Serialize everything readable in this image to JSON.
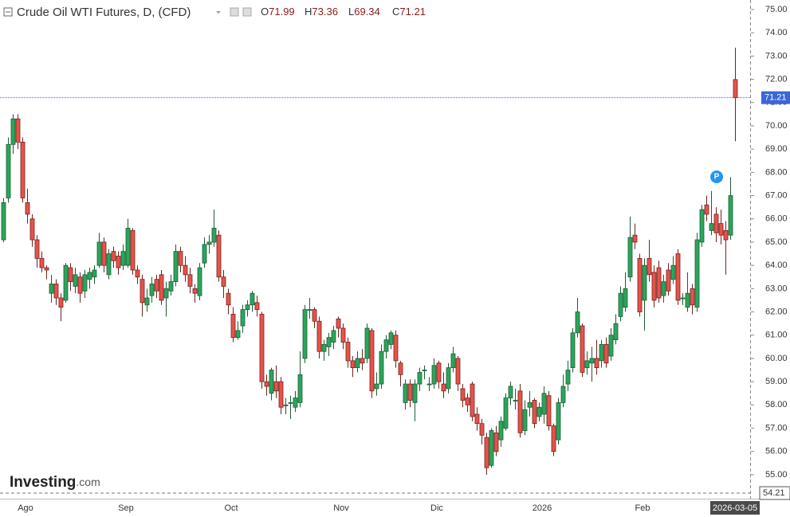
{
  "chart_data": {
    "type": "candlestick",
    "title": "Crude Oil WTI Futures, D, (CFD)",
    "ohlc_labels": [
      "O",
      "H",
      "L",
      "C"
    ],
    "annotation": "P",
    "watermark": [
      "Investing",
      ".com"
    ],
    "crosshair_price": 54.21,
    "up_color": "#2aa65c",
    "down_color": "#e8524a",
    "ylim": [
      53.97,
      75.41
    ],
    "yticks": [
      {
        "value": 55,
        "label": "55.00"
      },
      {
        "value": 56,
        "label": "56.00"
      },
      {
        "value": 57,
        "label": "57.00"
      },
      {
        "value": 58,
        "label": "58.00"
      },
      {
        "value": 59,
        "label": "59.00"
      },
      {
        "value": 60,
        "label": "60.00"
      },
      {
        "value": 61,
        "label": "61.00"
      },
      {
        "value": 62,
        "label": "62.00"
      },
      {
        "value": 63,
        "label": "63.00"
      },
      {
        "value": 64,
        "label": "64.00"
      },
      {
        "value": 65,
        "label": "65.00"
      },
      {
        "value": 66,
        "label": "66.00"
      },
      {
        "value": 67,
        "label": "67.00"
      },
      {
        "value": 68,
        "label": "68.00"
      },
      {
        "value": 69,
        "label": "69.00"
      },
      {
        "value": 70,
        "label": "70.00"
      },
      {
        "value": 71,
        "label": "71.00"
      },
      {
        "value": 72,
        "label": "72.00"
      },
      {
        "value": 73,
        "label": "73.00"
      },
      {
        "value": 74,
        "label": "74.00"
      },
      {
        "value": 75,
        "label": "75.00"
      }
    ],
    "categories": [
      null,
      null,
      null,
      null,
      "Ago",
      null,
      null,
      null,
      null,
      null,
      null,
      null,
      null,
      null,
      null,
      null,
      null,
      null,
      null,
      null,
      null,
      null,
      null,
      null,
      null,
      "Sep",
      null,
      null,
      null,
      null,
      null,
      null,
      null,
      null,
      null,
      null,
      null,
      null,
      null,
      null,
      null,
      null,
      null,
      null,
      null,
      null,
      null,
      "Oct",
      null,
      null,
      null,
      null,
      null,
      null,
      null,
      null,
      null,
      null,
      null,
      null,
      null,
      null,
      null,
      null,
      null,
      null,
      null,
      null,
      null,
      null,
      "Nov",
      null,
      null,
      null,
      null,
      null,
      null,
      null,
      null,
      null,
      null,
      null,
      null,
      null,
      null,
      null,
      null,
      null,
      null,
      null,
      "Dic",
      null,
      null,
      null,
      null,
      null,
      null,
      null,
      null,
      null,
      null,
      null,
      null,
      null,
      null,
      null,
      null,
      null,
      null,
      null,
      null,
      null,
      "2026",
      null,
      null,
      null,
      null,
      null,
      null,
      null,
      null,
      null,
      null,
      null,
      null,
      null,
      null,
      null,
      null,
      null,
      null,
      null,
      null,
      "Feb",
      null,
      null,
      null,
      null,
      null,
      null,
      null,
      null,
      null,
      null,
      null,
      null,
      null,
      null,
      null,
      null,
      null,
      null,
      null,
      "2026-03-05"
    ],
    "open": [
      65.1,
      66.9,
      69.2,
      70.3,
      69.3,
      66.7,
      66.0,
      65.1,
      64.3,
      63.9,
      62.8,
      63.2,
      62.6,
      62.5,
      63.9,
      63.1,
      63.5,
      62.9,
      63.4,
      63.5,
      64.0,
      65.0,
      63.6,
      64.6,
      64.4,
      64.0,
      64.0,
      65.5,
      63.8,
      63.4,
      62.3,
      62.7,
      63.4,
      63.6,
      62.6,
      62.9,
      63.3,
      64.6,
      64.0,
      63.6,
      63.0,
      62.7,
      64.1,
      64.9,
      65.0,
      65.3,
      63.5,
      62.8,
      61.9,
      60.9,
      61.4,
      62.1,
      62.3,
      62.4,
      61.9,
      59.0,
      58.5,
      59.0,
      59.0,
      58.0,
      58.1,
      57.9,
      58.1,
      60.0,
      62.1,
      62.1,
      61.6,
      60.3,
      60.5,
      60.7,
      61.7,
      61.3,
      60.7,
      59.9,
      59.6,
      60.0,
      60.0,
      61.2,
      58.7,
      58.9,
      60.3,
      60.6,
      61.0,
      59.8,
      58.1,
      58.9,
      58.1,
      58.9,
      59.5,
      58.9,
      58.9,
      59.8,
      58.9,
      58.7,
      59.6,
      60.0,
      58.7,
      58.3,
      58.9,
      57.6,
      57.2,
      56.6,
      55.4,
      56.8,
      56.5,
      57.0,
      58.3,
      58.2,
      58.6,
      56.9,
      57.9,
      58.2,
      57.5,
      57.6,
      58.4,
      57.1,
      56.5,
      58.1,
      58.9,
      59.6,
      61.1,
      61.4,
      59.6,
      59.8,
      60.0,
      59.9,
      60.6,
      60.1,
      60.8,
      61.8,
      62.2,
      63.5,
      65.3,
      64.3,
      62.5,
      64.3,
      63.7,
      63.9,
      62.7,
      63.8,
      63.4,
      64.5,
      62.6,
      62.2,
      63.0,
      62.2,
      65.0,
      66.6,
      65.5,
      66.2,
      65.8,
      65.5,
      65.3,
      71.99
    ],
    "high": [
      66.9,
      69.5,
      70.5,
      70.5,
      69.5,
      67.3,
      66.2,
      65.3,
      64.6,
      64.0,
      63.6,
      63.4,
      62.8,
      64.1,
      64.1,
      63.9,
      63.7,
      63.8,
      63.9,
      64.0,
      65.4,
      65.2,
      64.7,
      64.8,
      64.6,
      64.9,
      66.0,
      65.6,
      64.0,
      63.6,
      63.0,
      63.5,
      63.6,
      63.8,
      63.3,
      63.6,
      64.9,
      64.8,
      64.4,
      63.9,
      63.2,
      64.1,
      65.2,
      65.3,
      66.4,
      65.5,
      63.8,
      63.0,
      62.2,
      61.6,
      62.3,
      62.5,
      62.9,
      62.7,
      62.0,
      59.3,
      59.6,
      59.7,
      59.2,
      58.3,
      58.4,
      58.6,
      60.3,
      62.3,
      62.6,
      62.2,
      61.8,
      60.8,
      61.1,
      61.4,
      61.8,
      61.5,
      60.9,
      60.1,
      60.3,
      60.4,
      61.5,
      61.3,
      59.4,
      60.6,
      61.0,
      61.2,
      61.2,
      59.9,
      59.1,
      59.1,
      59.1,
      59.6,
      59.7,
      59.2,
      60.0,
      59.9,
      59.4,
      59.8,
      60.5,
      60.1,
      58.9,
      58.5,
      59.0,
      57.9,
      57.4,
      56.8,
      57.0,
      57.1,
      57.5,
      58.5,
      59.0,
      58.7,
      58.9,
      58.2,
      58.6,
      58.3,
      58.1,
      58.8,
      58.6,
      57.2,
      58.3,
      59.3,
      59.9,
      61.3,
      62.6,
      61.5,
      60.3,
      60.5,
      60.8,
      60.8,
      60.9,
      61.3,
      61.9,
      63.1,
      63.7,
      66.1,
      65.8,
      64.5,
      64.3,
      65.1,
      64.0,
      64.2,
      63.6,
      64.1,
      64.4,
      64.7,
      62.8,
      63.7,
      63.2,
      65.4,
      66.6,
      67.0,
      67.2,
      66.5,
      66.4,
      65.9,
      67.8,
      73.36
    ],
    "low": [
      65.0,
      66.7,
      68.8,
      69.0,
      66.7,
      65.8,
      64.8,
      63.9,
      63.7,
      63.4,
      62.4,
      62.3,
      61.6,
      62.4,
      62.9,
      62.8,
      62.4,
      62.6,
      63.0,
      63.2,
      63.9,
      63.7,
      63.4,
      63.9,
      63.6,
      63.8,
      63.9,
      63.6,
      63.2,
      61.8,
      62.0,
      62.4,
      62.6,
      62.3,
      61.8,
      62.7,
      63.1,
      63.7,
      63.3,
      62.8,
      62.4,
      62.5,
      63.9,
      64.5,
      64.8,
      63.3,
      62.6,
      61.9,
      60.7,
      60.8,
      61.1,
      61.8,
      62.0,
      61.8,
      58.7,
      58.4,
      58.2,
      58.3,
      57.6,
      57.6,
      57.4,
      57.7,
      57.9,
      59.8,
      61.7,
      61.3,
      60.0,
      59.9,
      60.1,
      60.4,
      60.9,
      60.4,
      59.6,
      59.2,
      59.4,
      59.5,
      59.8,
      58.3,
      58.4,
      58.7,
      60.0,
      60.4,
      59.6,
      58.8,
      57.8,
      57.9,
      57.3,
      58.6,
      59.1,
      58.6,
      58.7,
      58.7,
      58.3,
      58.5,
      59.4,
      58.6,
      57.9,
      57.7,
      57.3,
      56.9,
      56.3,
      55.0,
      55.3,
      55.8,
      56.2,
      56.9,
      58.0,
      57.8,
      56.6,
      56.7,
      57.5,
      57.0,
      57.3,
      57.2,
      56.9,
      55.8,
      56.3,
      57.9,
      58.6,
      59.4,
      60.9,
      59.2,
      59.3,
      59.0,
      59.3,
      59.6,
      59.6,
      59.9,
      60.6,
      61.6,
      62.0,
      63.3,
      64.7,
      61.8,
      61.2,
      63.3,
      62.2,
      62.4,
      62.4,
      62.7,
      63.2,
      62.3,
      62.3,
      62.0,
      61.9,
      62.0,
      64.8,
      65.9,
      65.3,
      65.0,
      64.9,
      63.6,
      65.1,
      69.34
    ],
    "close": [
      66.7,
      69.2,
      70.3,
      69.3,
      66.9,
      66.2,
      65.1,
      64.3,
      63.9,
      63.8,
      63.2,
      62.6,
      62.2,
      64.0,
      63.3,
      63.6,
      62.8,
      63.6,
      63.7,
      63.8,
      65.0,
      64.0,
      64.5,
      64.2,
      63.9,
      64.6,
      65.6,
      63.8,
      63.5,
      62.4,
      62.6,
      63.2,
      62.9,
      62.5,
      63.0,
      63.3,
      64.6,
      64.0,
      63.6,
      63.1,
      62.8,
      63.9,
      64.9,
      65.0,
      65.6,
      63.5,
      63.1,
      62.3,
      60.9,
      61.2,
      62.1,
      62.3,
      62.8,
      62.1,
      59.0,
      58.8,
      59.5,
      58.6,
      57.9,
      58.0,
      58.1,
      58.3,
      59.3,
      62.1,
      62.1,
      61.6,
      60.3,
      60.6,
      60.9,
      61.2,
      61.3,
      60.7,
      59.9,
      59.6,
      60.0,
      59.8,
      61.3,
      58.6,
      58.9,
      60.3,
      60.8,
      61.1,
      59.9,
      59.3,
      58.9,
      58.2,
      58.9,
      59.4,
      59.5,
      58.9,
      59.7,
      59.0,
      58.6,
      59.6,
      60.2,
      58.9,
      58.2,
      58.0,
      57.5,
      57.2,
      56.7,
      55.3,
      56.9,
      56.0,
      57.3,
      58.3,
      58.8,
      58.2,
      56.8,
      57.8,
      58.1,
      57.2,
      57.9,
      58.5,
      57.1,
      56.0,
      58.1,
      58.8,
      59.5,
      61.1,
      62.0,
      59.4,
      59.9,
      60.0,
      59.6,
      60.6,
      59.8,
      61.0,
      61.5,
      62.8,
      63.0,
      65.2,
      65.0,
      62.0,
      64.0,
      63.6,
      62.5,
      62.6,
      63.3,
      62.9,
      64.0,
      62.5,
      62.6,
      62.8,
      62.3,
      65.1,
      66.4,
      66.2,
      65.8,
      65.4,
      65.3,
      65.1,
      67.0,
      71.21
    ]
  }
}
